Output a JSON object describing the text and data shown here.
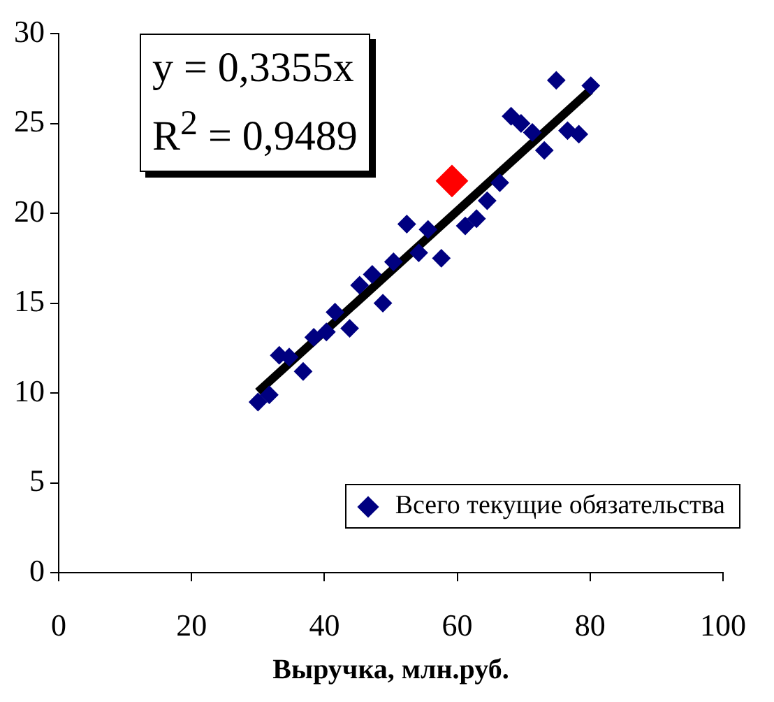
{
  "chart_data": {
    "type": "scatter",
    "xlabel": "Выручка, млн.руб.",
    "xlim": [
      0,
      100
    ],
    "xticks": [
      0,
      20,
      40,
      60,
      80,
      100
    ],
    "ylim": [
      0,
      30
    ],
    "yticks": [
      0,
      5,
      10,
      15,
      20,
      25,
      30
    ],
    "grid": false,
    "legend": "bottom right",
    "marker": "diamond",
    "annotations": [
      "y = 0,3355x",
      "R$^{2}$ = 0,9489"
    ],
    "series": [
      {
        "name": "Всего текущие обязательства",
        "color": "#000080",
        "x": [
          30.0,
          31.7,
          33.2,
          34.7,
          36.8,
          38.4,
          40.3,
          41.6,
          43.8,
          45.3,
          47.2,
          48.8,
          50.4,
          52.4,
          54.2,
          55.6,
          57.6,
          61.2,
          62.9,
          64.5,
          66.4,
          68.1,
          69.6,
          71.3,
          73.1,
          74.9,
          76.6,
          78.3,
          80.1
        ],
        "values": [
          9.5,
          9.9,
          12.1,
          12.0,
          11.2,
          13.1,
          13.4,
          14.5,
          13.6,
          16.0,
          16.6,
          15.0,
          17.3,
          19.4,
          17.8,
          19.1,
          17.5,
          19.3,
          19.7,
          20.7,
          21.7,
          25.4,
          25.0,
          24.5,
          23.5,
          27.4,
          24.6,
          24.4,
          27.1
        ]
      },
      {
        "color": "#ff0000",
        "x": [
          59.2
        ],
        "values": [
          21.8
        ]
      },
      {
        "type": "line",
        "marker": "none",
        "color": "#000000",
        "x": [
          30,
          80
        ],
        "values": [
          10.07,
          26.84
        ]
      }
    ]
  }
}
